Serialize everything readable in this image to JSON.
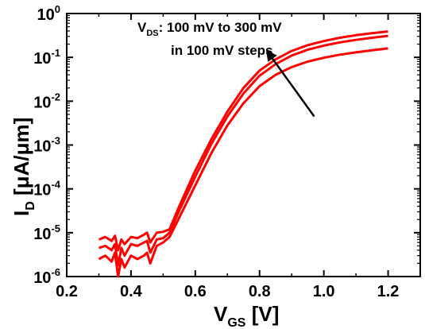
{
  "chart_data": {
    "type": "line",
    "x_axis": {
      "label_main": "V",
      "label_sub": "GS",
      "label_unit": " [V]",
      "lim": [
        0.2,
        1.3
      ],
      "ticks": [
        0.2,
        0.4,
        0.6,
        0.8,
        1.0,
        1.2
      ],
      "tick_labels": [
        "0.2",
        "0.4",
        "0.6",
        "0.8",
        "1.0",
        "1.2"
      ]
    },
    "y_axis": {
      "label_main": "I",
      "label_sub": "D",
      "label_unit": " [μA/μm]",
      "scale": "log",
      "lim": [
        1e-06,
        1
      ],
      "tick_exponents": [
        0,
        -1,
        -2,
        -3,
        -4,
        -5,
        -6
      ],
      "tick_base": "10"
    },
    "annotation": {
      "line1_main": "V",
      "line1_sub": "DS",
      "line1_rest": ": 100 mV to 300 mV",
      "line2": "in 100 mV steps"
    },
    "series_color": "#ff0000",
    "arrow_color": "#000000",
    "series": [
      {
        "x": [
          0.3,
          0.32,
          0.34,
          0.35,
          0.36,
          0.37,
          0.38,
          0.4,
          0.42,
          0.44,
          0.45,
          0.46,
          0.48,
          0.5,
          0.52,
          0.55,
          0.6,
          0.65,
          0.7,
          0.75,
          0.8,
          0.85,
          0.9,
          0.95,
          1.0,
          1.05,
          1.1,
          1.15,
          1.2
        ],
        "y": [
          2.5e-06,
          3e-06,
          2.2e-06,
          3.5e-06,
          1e-06,
          2.5e-06,
          1.6e-06,
          3e-06,
          2.5e-06,
          3e-06,
          3.5e-06,
          2e-06,
          5e-06,
          6e-06,
          8e-06,
          2.2e-05,
          0.00012,
          0.00065,
          0.0028,
          0.009,
          0.022,
          0.04,
          0.06,
          0.08,
          0.098,
          0.115,
          0.13,
          0.145,
          0.16
        ]
      },
      {
        "x": [
          0.3,
          0.32,
          0.34,
          0.35,
          0.36,
          0.37,
          0.38,
          0.4,
          0.42,
          0.44,
          0.45,
          0.46,
          0.48,
          0.5,
          0.52,
          0.55,
          0.6,
          0.65,
          0.7,
          0.75,
          0.8,
          0.85,
          0.9,
          0.95,
          1.0,
          1.05,
          1.1,
          1.15,
          1.2
        ],
        "y": [
          4.5e-06,
          5e-06,
          4e-06,
          5.5e-06,
          1.8e-06,
          4.5e-06,
          3e-06,
          5.5e-06,
          5e-06,
          6e-06,
          6.5e-06,
          3.5e-06,
          7e-06,
          7.5e-06,
          1e-05,
          3.2e-05,
          0.00019,
          0.00105,
          0.0045,
          0.015,
          0.038,
          0.07,
          0.11,
          0.15,
          0.185,
          0.22,
          0.25,
          0.28,
          0.31
        ]
      },
      {
        "x": [
          0.3,
          0.32,
          0.34,
          0.35,
          0.36,
          0.37,
          0.38,
          0.4,
          0.42,
          0.44,
          0.45,
          0.46,
          0.48,
          0.5,
          0.52,
          0.55,
          0.6,
          0.65,
          0.7,
          0.75,
          0.8,
          0.85,
          0.9,
          0.95,
          1.0,
          1.05,
          1.1,
          1.15,
          1.2
        ],
        "y": [
          7e-06,
          8e-06,
          6.5e-06,
          8.5e-06,
          4e-06,
          7e-06,
          5.5e-06,
          8e-06,
          7.5e-06,
          9e-06,
          1e-05,
          6e-06,
          1e-05,
          1.05e-05,
          1.2e-05,
          4e-05,
          0.00026,
          0.00135,
          0.0058,
          0.02,
          0.05,
          0.09,
          0.14,
          0.19,
          0.235,
          0.28,
          0.32,
          0.355,
          0.39
        ]
      }
    ],
    "arrow": {
      "from": [
        0.97,
        0.0045
      ],
      "to": [
        0.82,
        0.15
      ]
    }
  }
}
